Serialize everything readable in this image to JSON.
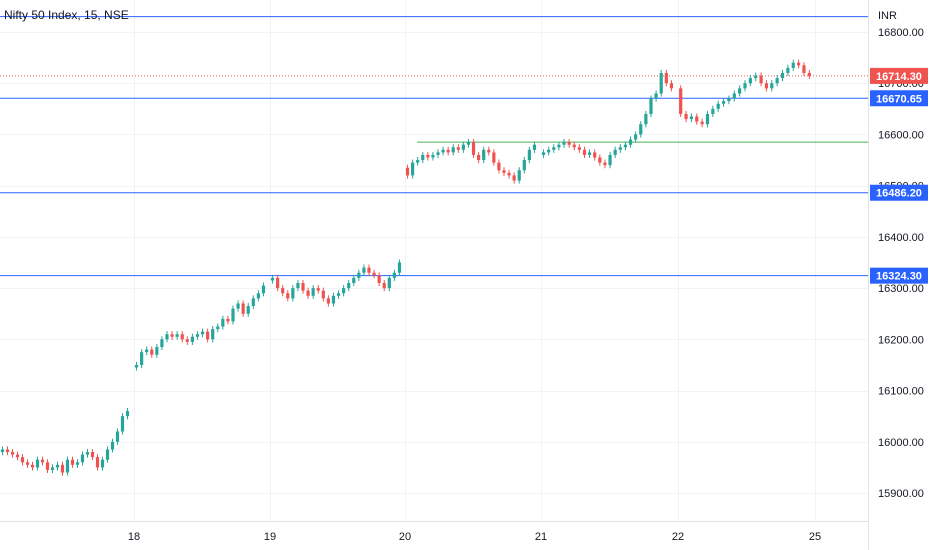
{
  "chart_data": {
    "type": "candlestick",
    "title": "Nifty 50 Index, 15, NSE",
    "currency": "INR",
    "ylim": [
      15850,
      16850
    ],
    "y_ticks": [
      "15900.00",
      "16000.00",
      "16100.00",
      "16200.00",
      "16300.00",
      "16400.00",
      "16500.00",
      "16600.00",
      "16700.00",
      "16800.00"
    ],
    "x_ticks": [
      "18",
      "19",
      "20",
      "21",
      "22",
      "25"
    ],
    "grid": true,
    "colors": {
      "up": "#26a69a",
      "down": "#ef5350",
      "level": "#2962ff",
      "support": "#4caf50",
      "last": "#ef5350"
    },
    "last_price": "16714.30",
    "levels": [
      {
        "value": 16830,
        "label": ""
      },
      {
        "value": 16670.65,
        "label": "16670.65"
      },
      {
        "value": 16486.2,
        "label": "16486.20"
      },
      {
        "value": 16324.3,
        "label": "16324.30"
      }
    ],
    "support_line": {
      "value": 16585,
      "from": "20",
      "to": "end"
    },
    "sessions": [
      {
        "day": "17",
        "closes": [
          15985,
          15980,
          15975,
          15970,
          15960,
          15955,
          15950,
          15965,
          15960,
          15945,
          15950,
          15955,
          15940,
          15965,
          15955,
          15960,
          15975,
          15980,
          15970,
          15950,
          15965,
          15985,
          16000,
          16020,
          16050,
          16060
        ]
      },
      {
        "day": "18",
        "closes": [
          16150,
          16175,
          16180,
          16170,
          16185,
          16200,
          16210,
          16205,
          16210,
          16200,
          16195,
          16205,
          16210,
          16215,
          16200,
          16220,
          16225,
          16240,
          16235,
          16260,
          16270,
          16250,
          16265,
          16280,
          16290,
          16305
        ]
      },
      {
        "day": "19",
        "closes": [
          16320,
          16300,
          16290,
          16280,
          16300,
          16310,
          16295,
          16285,
          16300,
          16295,
          16280,
          16270,
          16285,
          16290,
          16300,
          16310,
          16320,
          16330,
          16340,
          16330,
          16325,
          16310,
          16300,
          16320,
          16330,
          16350
        ]
      },
      {
        "day": "20",
        "closes": [
          16520,
          16545,
          16550,
          16560,
          16555,
          16560,
          16565,
          16570,
          16565,
          16575,
          16570,
          16580,
          16585,
          16560,
          16550,
          16570,
          16565,
          16545,
          16530,
          16525,
          16520,
          16510,
          16530,
          16550,
          16570,
          16580
        ]
      },
      {
        "day": "21",
        "closes": [
          16565,
          16570,
          16575,
          16580,
          16585,
          16580,
          16575,
          16570,
          16560,
          16565,
          16555,
          16545,
          16540,
          16560,
          16570,
          16575,
          16580,
          16590,
          16600,
          16620,
          16640,
          16670,
          16680,
          16720,
          16700,
          16690
        ]
      },
      {
        "day": "22",
        "closes": [
          16640,
          16630,
          16635,
          16625,
          16620,
          16640,
          16650,
          16660,
          16665,
          16670,
          16680,
          16690,
          16700,
          16710,
          16715,
          16700,
          16690,
          16700,
          16710,
          16720,
          16730,
          16740,
          16735,
          16720,
          16714
        ]
      }
    ]
  }
}
